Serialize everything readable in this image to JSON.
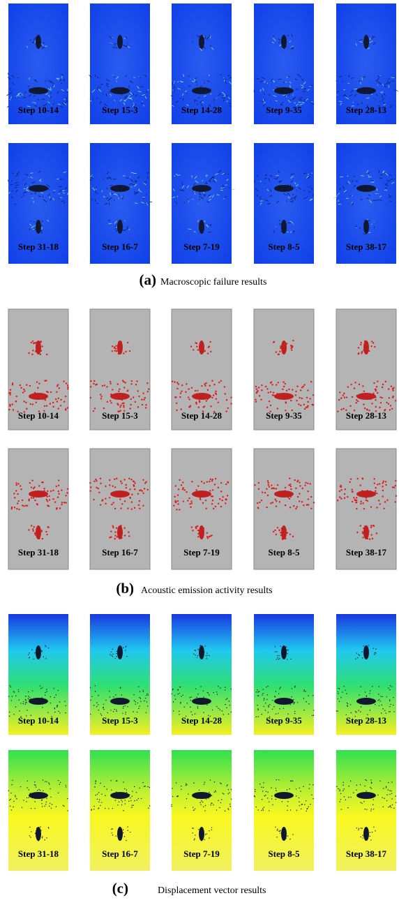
{
  "panels": [
    {
      "label": "(a)",
      "caption": "Macroscopic failure results",
      "rows": [
        [
          "Step 10-14",
          "Step 15-3",
          "Step 14-28",
          "Step 9-35",
          "Step 28-13"
        ],
        [
          "Step 31-18",
          "Step 16-7",
          "Step 7-19",
          "Step 8-5",
          "Step 38-17"
        ]
      ]
    },
    {
      "label": "(b)",
      "caption": "Acoustic emission activity results",
      "rows": [
        [
          "Step 10-14",
          "Step 15-3",
          "Step 14-28",
          "Step 9-35",
          "Step 28-13"
        ],
        [
          "Step 31-18",
          "Step 16-7",
          "Step 7-19",
          "Step 8-5",
          "Step 38-17"
        ]
      ]
    },
    {
      "label": "(c)",
      "caption": "Displacement vector results",
      "rows": [
        [
          "Step 10-14",
          "Step 15-3",
          "Step 14-28",
          "Step 9-35",
          "Step 28-13"
        ],
        [
          "Step 31-18",
          "Step 16-7",
          "Step 7-19",
          "Step 8-5",
          "Step 38-17"
        ]
      ]
    }
  ]
}
